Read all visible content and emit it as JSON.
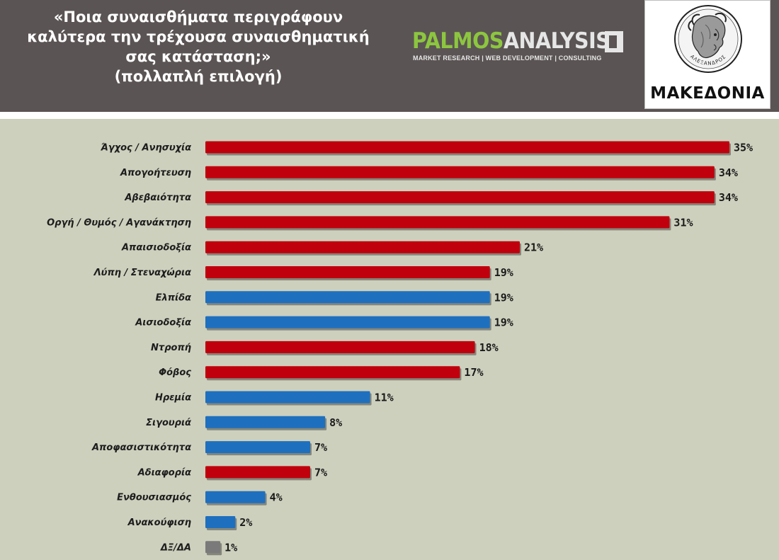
{
  "header": {
    "question_line1": "«Ποια συναισθήματα περιγράφουν",
    "question_line2": "καλύτερα την τρέχουσα συναισθηματική",
    "question_line3": "σας κατάσταση;»",
    "question_note": "(πολλαπλή επιλογή)"
  },
  "logos": {
    "palmos_part1": "PALMOS",
    "palmos_part2": "ANALYSIS",
    "palmos_tagline": "MARKET RESEARCH | WEB DEVELOPMENT | CONSULTING",
    "makedonia_name": "ΜΑΚΕΔΟΝΙΑ",
    "coin_inscription": "ΑΛΕΞΑΝΔΡΟΣ"
  },
  "colors": {
    "negative": "#c0000c",
    "positive": "#1f6fbf",
    "neutral": "#7a7a7a",
    "chart_background": "#cdd0bd",
    "header_background": "#5b5454"
  },
  "chart_data": {
    "type": "bar",
    "orientation": "horizontal",
    "unit": "%",
    "xlim": [
      0,
      35
    ],
    "categories": [
      "Άγχος / Ανησυχία",
      "Απογοήτευση",
      "Αβεβαιότητα",
      "Οργή / Θυμός / Αγανάκτηση",
      "Απαισιοδοξία",
      "Λύπη / Στεναχώρια",
      "Ελπίδα",
      "Αισιοδοξία",
      "Ντροπή",
      "Φόβος",
      "Ηρεμία",
      "Σιγουριά",
      "Αποφασιστικότητα",
      "Αδιαφορία",
      "Ενθουσιασμός",
      "Ανακούφιση",
      "ΔΞ/ΔΑ"
    ],
    "values": [
      35,
      34,
      34,
      31,
      21,
      19,
      19,
      19,
      18,
      17,
      11,
      8,
      7,
      7,
      4,
      2,
      1
    ],
    "value_labels": [
      "35%",
      "34%",
      "34%",
      "31%",
      "21%",
      "19%",
      "19%",
      "19%",
      "18%",
      "17%",
      "11%",
      "8%",
      "7%",
      "7%",
      "4%",
      "2%",
      "1%"
    ],
    "bar_colors": [
      "negative",
      "negative",
      "negative",
      "negative",
      "negative",
      "negative",
      "positive",
      "positive",
      "negative",
      "negative",
      "positive",
      "positive",
      "positive",
      "negative",
      "positive",
      "positive",
      "neutral"
    ]
  }
}
